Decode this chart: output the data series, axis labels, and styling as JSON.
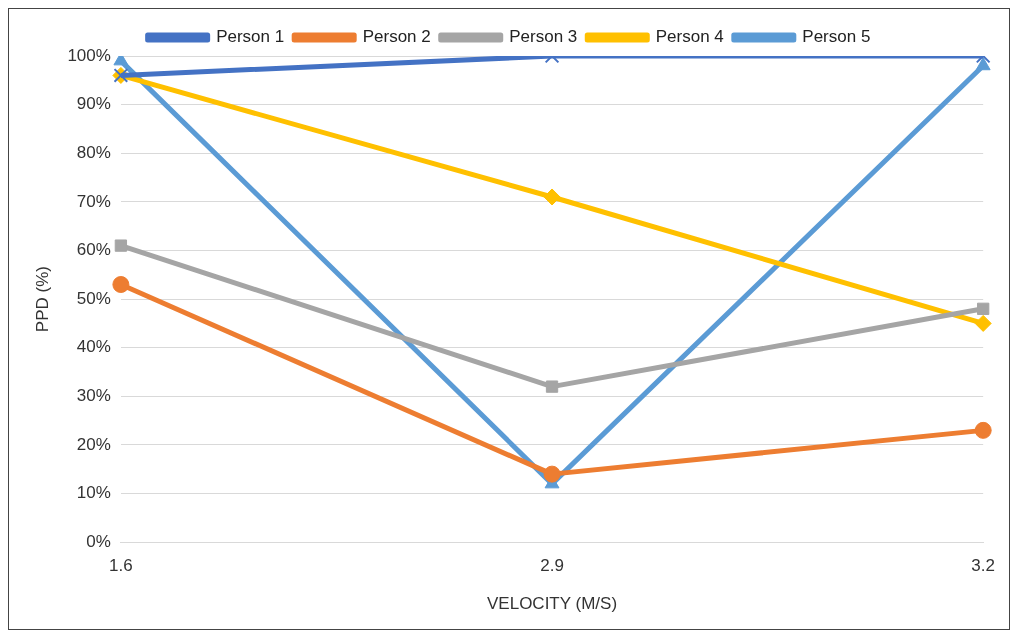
{
  "chart_data": {
    "type": "line",
    "xlabel": "VELOCITY (M/S)",
    "ylabel": "PPD (%)",
    "categories": [
      "1.6",
      "2.9",
      "3.2"
    ],
    "series": [
      {
        "name": "Person 1",
        "color": "#4472c4",
        "marker": "cross",
        "values": [
          96,
          100,
          100
        ]
      },
      {
        "name": "Person 2",
        "color": "#ed7d31",
        "marker": "circle",
        "values": [
          53,
          14,
          23
        ]
      },
      {
        "name": "Person 3",
        "color": "#a5a5a5",
        "marker": "square",
        "values": [
          61,
          32,
          48
        ]
      },
      {
        "name": "Person 4",
        "color": "#ffc000",
        "marker": "diamond",
        "values": [
          96,
          71,
          45
        ]
      },
      {
        "name": "Person 5",
        "color": "#5b9bd5",
        "marker": "triangle",
        "values": [
          99,
          12,
          98
        ]
      }
    ],
    "ylim": [
      0,
      100
    ],
    "yticks": [
      {
        "value": 0,
        "label": "0%"
      },
      {
        "value": 10,
        "label": "10%"
      },
      {
        "value": 20,
        "label": "20%"
      },
      {
        "value": 30,
        "label": "30%"
      },
      {
        "value": 40,
        "label": "40%"
      },
      {
        "value": 50,
        "label": "50%"
      },
      {
        "value": 60,
        "label": "60%"
      },
      {
        "value": 70,
        "label": "70%"
      },
      {
        "value": 80,
        "label": "80%"
      },
      {
        "value": 90,
        "label": "90%"
      },
      {
        "value": 100,
        "label": "100%"
      }
    ],
    "grid": "y",
    "legend": "top",
    "line_style": "solid"
  }
}
